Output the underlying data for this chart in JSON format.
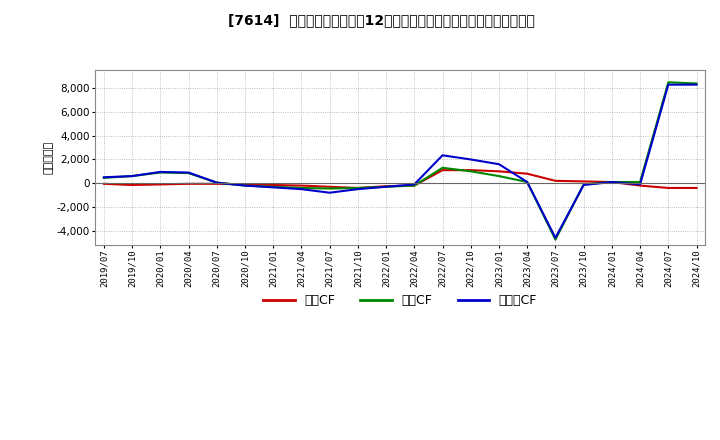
{
  "title": "[7614]  キャッシュフローの12か月移動合計の対前年同期増減額の推移",
  "ylabel": "（百万円）",
  "background_color": "#ffffff",
  "plot_bg_color": "#ffffff",
  "grid_color": "#aaaaaa",
  "ylim": [
    -5200,
    9500
  ],
  "yticks": [
    -4000,
    -2000,
    0,
    2000,
    4000,
    6000,
    8000
  ],
  "x_labels": [
    "2019/07",
    "2019/10",
    "2020/01",
    "2020/04",
    "2020/07",
    "2020/10",
    "2021/01",
    "2021/04",
    "2021/07",
    "2021/10",
    "2022/01",
    "2022/04",
    "2022/07",
    "2022/10",
    "2023/01",
    "2023/04",
    "2023/07",
    "2023/10",
    "2024/01",
    "2024/04",
    "2024/07",
    "2024/10"
  ],
  "series": {
    "営業CF": {
      "color": "#cc0000",
      "values": [
        -50,
        -150,
        -100,
        -50,
        -50,
        -100,
        -150,
        -200,
        -300,
        -400,
        -250,
        -200,
        1100,
        1100,
        1000,
        800,
        200,
        150,
        100,
        -200,
        -400,
        -400
      ]
    },
    "投賃CF": {
      "color": "#008800",
      "values": [
        450,
        600,
        900,
        850,
        50,
        -200,
        -300,
        -400,
        -450,
        -400,
        -300,
        -200,
        1300,
        1000,
        600,
        100,
        -4750,
        -100,
        100,
        100,
        8500,
        8400
      ]
    },
    "フリーCF": {
      "color": "#0000cc",
      "values": [
        500,
        600,
        950,
        900,
        50,
        -200,
        -350,
        -500,
        -800,
        -500,
        -300,
        -100,
        2350,
        2000,
        1600,
        100,
        -4600,
        -150,
        100,
        -100,
        8300,
        8300
      ]
    }
  },
  "legend": {
    "labels": [
      "営業CF",
      "投賃CF",
      "フリーCF"
    ],
    "colors": [
      "#cc0000",
      "#008800",
      "#0000cc"
    ]
  }
}
